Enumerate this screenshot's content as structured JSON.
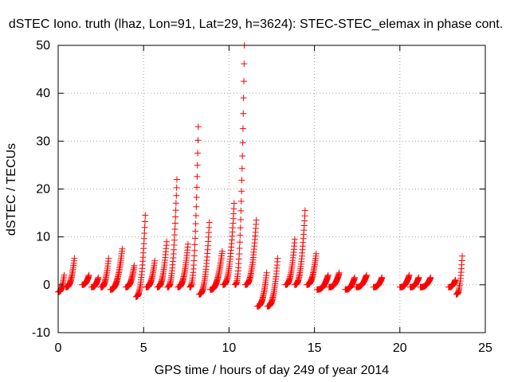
{
  "chart_data": {
    "type": "scatter",
    "title": "dSTEC Iono. truth (lhaz, Lon=91, Lat=29, h=3624): STEC-STEC_elemax in phase cont.",
    "xlabel": "GPS time / hours of day 249 of year 2014",
    "ylabel": "dSTEC  / TECUs",
    "xlim": [
      0,
      25
    ],
    "ylim": [
      -10,
      50
    ],
    "xticks": [
      0,
      5,
      10,
      15,
      20,
      25
    ],
    "yticks": [
      -10,
      0,
      10,
      20,
      30,
      40,
      50
    ],
    "grid": true,
    "marker": "+",
    "color": "#ff0000",
    "arcs": [
      {
        "start": 0.0,
        "end": 0.35,
        "min": -1.5,
        "max": 2
      },
      {
        "start": 0.45,
        "end": 0.95,
        "min": -0.5,
        "max": 5.5
      },
      {
        "start": 1.4,
        "end": 1.8,
        "min": 0,
        "max": 2
      },
      {
        "start": 1.95,
        "end": 2.35,
        "min": -0.5,
        "max": 1.5
      },
      {
        "start": 2.5,
        "end": 2.95,
        "min": -0.5,
        "max": 5.5
      },
      {
        "start": 3.05,
        "end": 3.75,
        "min": -1,
        "max": 7.5
      },
      {
        "start": 3.95,
        "end": 4.45,
        "min": -0.5,
        "max": 4
      },
      {
        "start": 4.55,
        "end": 5.1,
        "min": -2.5,
        "max": 14.5
      },
      {
        "start": 5.15,
        "end": 5.65,
        "min": -0.5,
        "max": 5
      },
      {
        "start": 5.8,
        "end": 6.35,
        "min": -0.5,
        "max": 9
      },
      {
        "start": 6.4,
        "end": 6.95,
        "min": -0.5,
        "max": 22
      },
      {
        "start": 7.0,
        "end": 7.6,
        "min": -0.5,
        "max": 8.5
      },
      {
        "start": 7.7,
        "end": 8.2,
        "min": -0.5,
        "max": 33
      },
      {
        "start": 8.25,
        "end": 8.85,
        "min": -2,
        "max": 13
      },
      {
        "start": 8.9,
        "end": 9.6,
        "min": -1,
        "max": 7
      },
      {
        "start": 9.65,
        "end": 10.3,
        "min": 0,
        "max": 17
      },
      {
        "start": 10.35,
        "end": 10.9,
        "min": 0,
        "max": 50
      },
      {
        "start": 10.95,
        "end": 11.6,
        "min": 0,
        "max": 13.5
      },
      {
        "start": 11.65,
        "end": 12.2,
        "min": -4.5,
        "max": 2.5
      },
      {
        "start": 12.25,
        "end": 12.85,
        "min": -4.5,
        "max": 5.5
      },
      {
        "start": 13.3,
        "end": 13.85,
        "min": 0,
        "max": 9.5
      },
      {
        "start": 13.85,
        "end": 14.45,
        "min": 0,
        "max": 15.5
      },
      {
        "start": 14.55,
        "end": 15.1,
        "min": 0,
        "max": 6.5
      },
      {
        "start": 15.15,
        "end": 15.8,
        "min": -1,
        "max": 2
      },
      {
        "start": 15.85,
        "end": 16.45,
        "min": -0.5,
        "max": 2.5
      },
      {
        "start": 16.8,
        "end": 17.35,
        "min": -1,
        "max": 1.5
      },
      {
        "start": 17.45,
        "end": 18.05,
        "min": -0.5,
        "max": 2
      },
      {
        "start": 18.45,
        "end": 18.95,
        "min": -0.5,
        "max": 1.5
      },
      {
        "start": 20.0,
        "end": 20.55,
        "min": -0.5,
        "max": 2
      },
      {
        "start": 20.6,
        "end": 21.1,
        "min": -0.5,
        "max": 1.5
      },
      {
        "start": 21.2,
        "end": 21.8,
        "min": -0.5,
        "max": 1.5
      },
      {
        "start": 22.85,
        "end": 23.25,
        "min": -0.5,
        "max": 1
      },
      {
        "start": 23.3,
        "end": 23.65,
        "min": -2,
        "max": 6
      }
    ]
  }
}
